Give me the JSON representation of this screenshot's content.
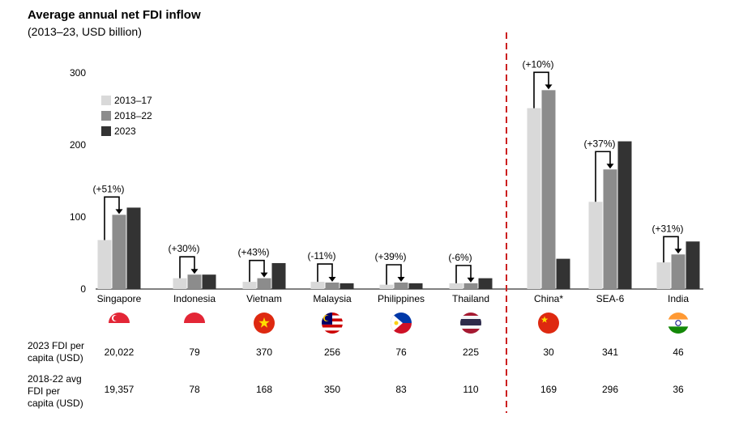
{
  "chart_data": {
    "type": "bar",
    "title": "Average annual net FDI inflow",
    "subtitle": "(2013–23, USD billion)",
    "categories": [
      "Singapore",
      "Indonesia",
      "Vietnam",
      "Malaysia",
      "Philippines",
      "Thailand",
      "China*",
      "SEA-6",
      "India"
    ],
    "series": [
      {
        "name": "2013–17",
        "color": "#d9d9d9",
        "values": [
          68,
          15,
          10,
          10,
          6,
          8,
          251,
          121,
          37
        ]
      },
      {
        "name": "2018–22",
        "color": "#8c8c8c",
        "values": [
          103,
          20,
          15,
          9,
          9,
          8,
          276,
          166,
          48
        ]
      },
      {
        "name": "2023",
        "color": "#333333",
        "values": [
          113,
          20,
          36,
          8,
          8,
          15,
          42,
          205,
          66
        ]
      }
    ],
    "change_labels": [
      "(+51%)",
      "(+30%)",
      "(+43%)",
      "(-11%)",
      "(+39%)",
      "(-6%)",
      "(+10%)",
      "(+37%)",
      "(+31%)"
    ],
    "yticks": [
      0,
      100,
      200,
      300
    ],
    "ylim": [
      0,
      300
    ],
    "legend_position": "top-left",
    "divider_after_category": "Thailand",
    "divider_color": "#cc1f1f"
  },
  "flags": [
    "flag-singapore",
    "flag-indonesia",
    "flag-vietnam",
    "flag-malaysia",
    "flag-philippines",
    "flag-thailand",
    "flag-china",
    "",
    "flag-india"
  ],
  "table": {
    "row1_label": [
      "2023 FDI per",
      "capita (USD)"
    ],
    "row1_values": [
      "20,022",
      "79",
      "370",
      "256",
      "76",
      "225",
      "30",
      "341",
      "46"
    ],
    "row2_label": [
      "2018-22 avg",
      "FDI per",
      "capita (USD)"
    ],
    "row2_values": [
      "19,357",
      "78",
      "168",
      "350",
      "83",
      "110",
      "169",
      "296",
      "36"
    ]
  }
}
